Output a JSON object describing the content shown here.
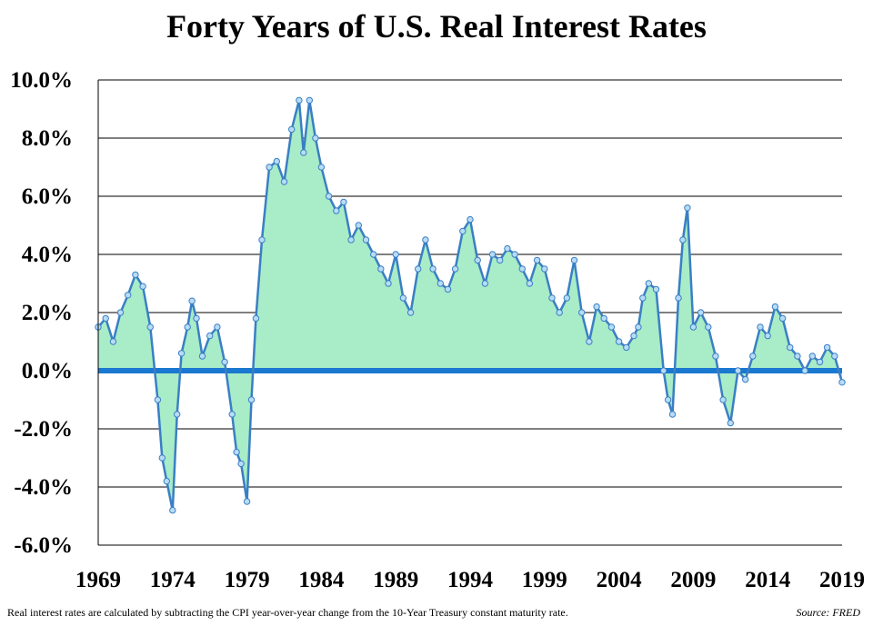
{
  "chart_data": {
    "type": "area",
    "title": "Forty Years of U.S. Real Interest Rates",
    "xlabel": "",
    "ylabel": "",
    "x_ticks": [
      "1969",
      "1974",
      "1979",
      "1984",
      "1989",
      "1994",
      "1999",
      "2004",
      "2009",
      "2014",
      "2019"
    ],
    "y_ticks": [
      "10.0%",
      "8.0%",
      "6.0%",
      "4.0%",
      "2.0%",
      "0.0%",
      "-2.0%",
      "-4.0%",
      "-6.0%"
    ],
    "xlim": [
      1969,
      2019
    ],
    "ylim": [
      -6,
      10
    ],
    "grid": true,
    "colors": {
      "fill": "#a8ecc8",
      "line": "#3a7fc4",
      "marker": "#b8dcf6",
      "zero_line": "#1a78d0",
      "grid": "#000000"
    },
    "series": [
      {
        "x": [
          1969.0,
          1969.5,
          1970.0,
          1970.5,
          1971.0,
          1971.5,
          1972.0,
          1972.5,
          1973.0,
          1973.3,
          1973.6,
          1974.0,
          1974.3,
          1974.6,
          1975.0,
          1975.3,
          1975.6,
          1976.0,
          1976.5,
          1977.0,
          1977.5,
          1978.0,
          1978.3,
          1978.6,
          1979.0,
          1979.3,
          1979.6,
          1980.0,
          1980.5,
          1981.0,
          1981.5,
          1982.0,
          1982.5,
          1982.8,
          1983.2,
          1983.6,
          1984.0,
          1984.5,
          1985.0,
          1985.5,
          1986.0,
          1986.5,
          1987.0,
          1987.5,
          1988.0,
          1988.5,
          1989.0,
          1989.5,
          1990.0,
          1990.5,
          1991.0,
          1991.5,
          1992.0,
          1992.5,
          1993.0,
          1993.5,
          1994.0,
          1994.5,
          1995.0,
          1995.5,
          1996.0,
          1996.5,
          1997.0,
          1997.5,
          1998.0,
          1998.5,
          1999.0,
          1999.5,
          2000.0,
          2000.5,
          2001.0,
          2001.5,
          2002.0,
          2002.5,
          2003.0,
          2003.5,
          2004.0,
          2004.5,
          2005.0,
          2005.3,
          2005.6,
          2006.0,
          2006.5,
          2007.0,
          2007.3,
          2007.6,
          2008.0,
          2008.3,
          2008.6,
          2009.0,
          2009.5,
          2010.0,
          2010.5,
          2011.0,
          2011.5,
          2012.0,
          2012.5,
          2013.0,
          2013.5,
          2014.0,
          2014.5,
          2015.0,
          2015.5,
          2016.0,
          2016.5,
          2017.0,
          2017.5,
          2018.0,
          2018.5,
          2019.0
        ],
        "y": [
          1.5,
          1.8,
          1.0,
          2.0,
          2.6,
          3.3,
          2.9,
          1.5,
          -1.0,
          -3.0,
          -3.8,
          -4.8,
          -1.5,
          0.6,
          1.5,
          2.4,
          1.8,
          0.5,
          1.2,
          1.5,
          0.3,
          -1.5,
          -2.8,
          -3.2,
          -4.5,
          -1.0,
          1.8,
          4.5,
          7.0,
          7.2,
          6.5,
          8.3,
          9.3,
          7.5,
          9.3,
          8.0,
          7.0,
          6.0,
          5.5,
          5.8,
          4.5,
          5.0,
          4.5,
          4.0,
          3.5,
          3.0,
          4.0,
          2.5,
          2.0,
          3.5,
          4.5,
          3.5,
          3.0,
          2.8,
          3.5,
          4.8,
          5.2,
          3.8,
          3.0,
          4.0,
          3.8,
          4.2,
          4.0,
          3.5,
          3.0,
          3.8,
          3.5,
          2.5,
          2.0,
          2.5,
          3.8,
          2.0,
          1.0,
          2.2,
          1.8,
          1.5,
          1.0,
          0.8,
          1.2,
          1.5,
          2.5,
          3.0,
          2.8,
          0.0,
          -1.0,
          -1.5,
          2.5,
          4.5,
          5.6,
          1.5,
          2.0,
          1.5,
          0.5,
          -1.0,
          -1.8,
          0.0,
          -0.3,
          0.5,
          1.5,
          1.2,
          2.2,
          1.8,
          0.8,
          0.5,
          0.0,
          0.5,
          0.3,
          0.8,
          0.5,
          -0.4
        ]
      }
    ]
  },
  "footnote": "Real interest rates are calculated by subtracting the CPI year-over-year change from the 10-Year Treasury constant maturity rate.",
  "source": "Source: FRED"
}
